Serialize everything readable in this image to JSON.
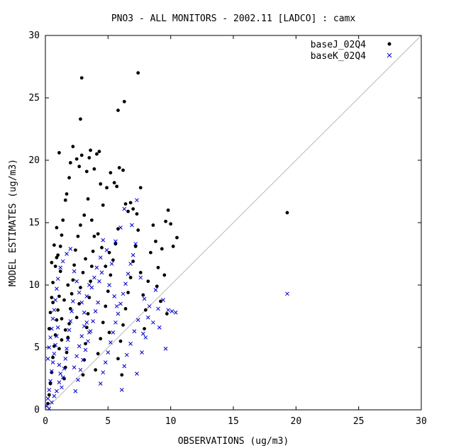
{
  "chart_data": {
    "type": "scatter",
    "title": "PNO3 - ALL MONITORS - 2002.11 [LADCO] : camx",
    "xlabel": "OBSERVATIONS (ug/m3)",
    "ylabel": "MODEL ESTIMATES (ug/m3)",
    "xlim": [
      0,
      30
    ],
    "ylim": [
      0,
      30
    ],
    "xticks": [
      0,
      5,
      10,
      15,
      20,
      25,
      30
    ],
    "yticks": [
      0,
      5,
      10,
      15,
      20,
      25,
      30
    ],
    "reference_line": "1:1",
    "grid": false,
    "legend_position": "top-right",
    "series": [
      {
        "name": "baseJ_02Q4",
        "marker": "dot",
        "color": "#000000",
        "points": [
          [
            0.2,
            0.5
          ],
          [
            0.3,
            1.2
          ],
          [
            0.4,
            2.1
          ],
          [
            0.5,
            3.0
          ],
          [
            0.6,
            4.2
          ],
          [
            0.7,
            5.1
          ],
          [
            0.8,
            6.0
          ],
          [
            0.9,
            7.2
          ],
          [
            1.0,
            8.0
          ],
          [
            1.1,
            9.1
          ],
          [
            0.3,
            6.5
          ],
          [
            0.4,
            7.8
          ],
          [
            0.5,
            9.0
          ],
          [
            0.6,
            10.2
          ],
          [
            0.8,
            11.5
          ],
          [
            1.0,
            12.4
          ],
          [
            1.2,
            13.1
          ],
          [
            0.9,
            14.6
          ],
          [
            1.3,
            14.0
          ],
          [
            0.7,
            13.2
          ],
          [
            1.5,
            2.5
          ],
          [
            1.6,
            3.4
          ],
          [
            1.7,
            4.6
          ],
          [
            1.8,
            5.8
          ],
          [
            1.9,
            6.9
          ],
          [
            2.0,
            8.1
          ],
          [
            2.1,
            9.3
          ],
          [
            2.2,
            10.4
          ],
          [
            2.3,
            11.6
          ],
          [
            2.4,
            12.8
          ],
          [
            1.4,
            15.2
          ],
          [
            1.6,
            16.8
          ],
          [
            1.7,
            17.3
          ],
          [
            1.9,
            18.6
          ],
          [
            2.0,
            19.8
          ],
          [
            1.1,
            20.6
          ],
          [
            2.2,
            21.1
          ],
          [
            2.5,
            20.1
          ],
          [
            2.7,
            19.5
          ],
          [
            2.9,
            20.4
          ],
          [
            3.0,
            2.8
          ],
          [
            3.1,
            4.0
          ],
          [
            3.2,
            5.3
          ],
          [
            3.3,
            6.6
          ],
          [
            3.4,
            7.7
          ],
          [
            3.5,
            9.0
          ],
          [
            3.6,
            10.3
          ],
          [
            3.7,
            11.5
          ],
          [
            3.8,
            12.7
          ],
          [
            3.9,
            13.9
          ],
          [
            3.3,
            19.1
          ],
          [
            3.5,
            20.2
          ],
          [
            3.6,
            20.8
          ],
          [
            3.9,
            19.3
          ],
          [
            4.1,
            20.5
          ],
          [
            4.3,
            20.7
          ],
          [
            4.4,
            18.1
          ],
          [
            4.6,
            16.4
          ],
          [
            4.9,
            17.8
          ],
          [
            5.2,
            19.0
          ],
          [
            4.0,
            3.2
          ],
          [
            4.2,
            4.5
          ],
          [
            4.4,
            5.7
          ],
          [
            4.6,
            7.0
          ],
          [
            4.8,
            8.3
          ],
          [
            5.0,
            9.5
          ],
          [
            5.2,
            10.8
          ],
          [
            5.4,
            12.0
          ],
          [
            5.6,
            13.3
          ],
          [
            5.8,
            14.5
          ],
          [
            5.5,
            18.2
          ],
          [
            5.7,
            17.9
          ],
          [
            5.9,
            19.4
          ],
          [
            6.2,
            19.2
          ],
          [
            6.4,
            16.5
          ],
          [
            6.6,
            15.9
          ],
          [
            6.8,
            16.6
          ],
          [
            7.0,
            16.1
          ],
          [
            7.3,
            15.7
          ],
          [
            7.6,
            17.8
          ],
          [
            6.0,
            5.5
          ],
          [
            6.2,
            6.8
          ],
          [
            6.4,
            8.1
          ],
          [
            6.6,
            9.4
          ],
          [
            6.8,
            10.6
          ],
          [
            7.0,
            11.9
          ],
          [
            7.2,
            13.1
          ],
          [
            7.4,
            14.4
          ],
          [
            7.6,
            11.0
          ],
          [
            7.8,
            9.2
          ],
          [
            8.0,
            8.0
          ],
          [
            8.2,
            10.3
          ],
          [
            8.4,
            12.6
          ],
          [
            8.6,
            14.8
          ],
          [
            8.8,
            13.5
          ],
          [
            9.0,
            11.4
          ],
          [
            9.3,
            12.9
          ],
          [
            9.6,
            15.1
          ],
          [
            9.8,
            16.0
          ],
          [
            10.0,
            14.9
          ],
          [
            10.2,
            13.1
          ],
          [
            10.5,
            13.8
          ],
          [
            9.5,
            10.8
          ],
          [
            9.7,
            7.7
          ],
          [
            9.2,
            8.7
          ],
          [
            8.9,
            9.9
          ],
          [
            7.9,
            6.5
          ],
          [
            6.1,
            2.8
          ],
          [
            5.8,
            4.1
          ],
          [
            5.1,
            6.2
          ],
          [
            2.9,
            26.6
          ],
          [
            7.4,
            27.0
          ],
          [
            6.3,
            24.7
          ],
          [
            5.8,
            24.0
          ],
          [
            2.8,
            23.3
          ],
          [
            19.3,
            15.8
          ],
          [
            0.9,
            12.2
          ],
          [
            1.2,
            11.1
          ],
          [
            0.5,
            11.8
          ],
          [
            0.6,
            8.6
          ],
          [
            1.3,
            7.3
          ],
          [
            1.5,
            8.8
          ],
          [
            1.8,
            10.0
          ],
          [
            2.6,
            13.9
          ],
          [
            2.8,
            14.8
          ],
          [
            3.1,
            15.6
          ],
          [
            3.4,
            16.9
          ],
          [
            3.7,
            15.2
          ],
          [
            4.2,
            14.1
          ],
          [
            4.5,
            13.0
          ],
          [
            1.1,
            4.9
          ],
          [
            1.3,
            5.6
          ],
          [
            1.6,
            6.4
          ],
          [
            2.5,
            7.4
          ],
          [
            2.7,
            8.5
          ],
          [
            2.8,
            9.8
          ],
          [
            3.0,
            11.0
          ],
          [
            3.2,
            12.1
          ],
          [
            4.8,
            11.5
          ],
          [
            5.1,
            12.6
          ]
        ]
      },
      {
        "name": "baseK_02Q4",
        "marker": "cross",
        "color": "#0000cc",
        "points": [
          [
            0.1,
            0.3
          ],
          [
            0.2,
            0.9
          ],
          [
            0.3,
            1.6
          ],
          [
            0.4,
            2.3
          ],
          [
            0.5,
            3.1
          ],
          [
            0.6,
            3.8
          ],
          [
            0.7,
            4.5
          ],
          [
            0.8,
            5.2
          ],
          [
            0.9,
            5.9
          ],
          [
            1.0,
            6.6
          ],
          [
            0.2,
            4.1
          ],
          [
            0.3,
            5.0
          ],
          [
            0.4,
            5.8
          ],
          [
            0.5,
            6.5
          ],
          [
            0.6,
            7.3
          ],
          [
            0.7,
            8.0
          ],
          [
            0.8,
            8.8
          ],
          [
            0.9,
            9.7
          ],
          [
            1.0,
            10.5
          ],
          [
            1.2,
            11.4
          ],
          [
            1.3,
            1.8
          ],
          [
            1.4,
            2.6
          ],
          [
            1.5,
            3.3
          ],
          [
            1.6,
            4.1
          ],
          [
            1.7,
            4.9
          ],
          [
            1.8,
            5.6
          ],
          [
            1.9,
            6.4
          ],
          [
            2.0,
            7.1
          ],
          [
            2.1,
            7.9
          ],
          [
            2.2,
            8.7
          ],
          [
            1.4,
            11.9
          ],
          [
            1.7,
            12.5
          ],
          [
            2.0,
            12.9
          ],
          [
            2.3,
            11.1
          ],
          [
            2.5,
            10.3
          ],
          [
            2.7,
            9.4
          ],
          [
            2.9,
            8.6
          ],
          [
            3.1,
            7.8
          ],
          [
            3.3,
            7.0
          ],
          [
            3.5,
            6.2
          ],
          [
            2.4,
            1.5
          ],
          [
            2.6,
            2.4
          ],
          [
            2.8,
            3.2
          ],
          [
            3.0,
            4.0
          ],
          [
            3.2,
            4.8
          ],
          [
            3.4,
            5.5
          ],
          [
            3.6,
            6.3
          ],
          [
            3.8,
            7.1
          ],
          [
            4.0,
            7.9
          ],
          [
            4.2,
            8.6
          ],
          [
            3.7,
            9.8
          ],
          [
            3.9,
            10.6
          ],
          [
            4.1,
            11.4
          ],
          [
            4.4,
            12.2
          ],
          [
            4.6,
            13.6
          ],
          [
            4.9,
            12.8
          ],
          [
            5.3,
            11.7
          ],
          [
            5.6,
            13.5
          ],
          [
            6.0,
            14.6
          ],
          [
            6.3,
            16.1
          ],
          [
            4.4,
            2.1
          ],
          [
            4.6,
            3.0
          ],
          [
            4.8,
            3.8
          ],
          [
            5.0,
            4.6
          ],
          [
            5.2,
            5.4
          ],
          [
            5.4,
            6.2
          ],
          [
            5.6,
            7.0
          ],
          [
            5.8,
            7.7
          ],
          [
            6.0,
            8.5
          ],
          [
            6.2,
            9.3
          ],
          [
            6.4,
            10.1
          ],
          [
            6.6,
            10.9
          ],
          [
            6.8,
            11.7
          ],
          [
            7.0,
            12.4
          ],
          [
            7.2,
            13.3
          ],
          [
            6.9,
            14.8
          ],
          [
            7.3,
            16.8
          ],
          [
            7.6,
            10.6
          ],
          [
            7.9,
            8.9
          ],
          [
            8.2,
            7.4
          ],
          [
            6.1,
            1.6
          ],
          [
            6.3,
            3.5
          ],
          [
            6.5,
            4.4
          ],
          [
            6.8,
            5.3
          ],
          [
            7.1,
            6.3
          ],
          [
            7.4,
            7.2
          ],
          [
            7.3,
            2.9
          ],
          [
            7.8,
            6.1
          ],
          [
            8.3,
            8.3
          ],
          [
            8.6,
            7.0
          ],
          [
            9.0,
            8.1
          ],
          [
            9.4,
            8.8
          ],
          [
            9.8,
            8.0
          ],
          [
            10.1,
            7.9
          ],
          [
            10.4,
            7.8
          ],
          [
            9.6,
            4.9
          ],
          [
            8.8,
            9.6
          ],
          [
            9.1,
            6.6
          ],
          [
            8.0,
            5.8
          ],
          [
            7.7,
            4.6
          ],
          [
            19.3,
            9.3
          ],
          [
            0.3,
            0.1
          ],
          [
            0.5,
            0.6
          ],
          [
            0.7,
            1.1
          ],
          [
            0.9,
            1.5
          ],
          [
            1.1,
            2.2
          ],
          [
            1.2,
            2.9
          ],
          [
            1.1,
            3.6
          ],
          [
            2.3,
            3.4
          ],
          [
            2.5,
            4.3
          ],
          [
            2.7,
            5.1
          ],
          [
            2.9,
            5.9
          ],
          [
            3.1,
            6.7
          ],
          [
            3.3,
            9.1
          ],
          [
            3.5,
            10.0
          ],
          [
            4.3,
            10.3
          ],
          [
            4.5,
            11.0
          ],
          [
            5.1,
            10.0
          ],
          [
            5.5,
            9.1
          ],
          [
            5.7,
            8.3
          ]
        ]
      }
    ]
  }
}
